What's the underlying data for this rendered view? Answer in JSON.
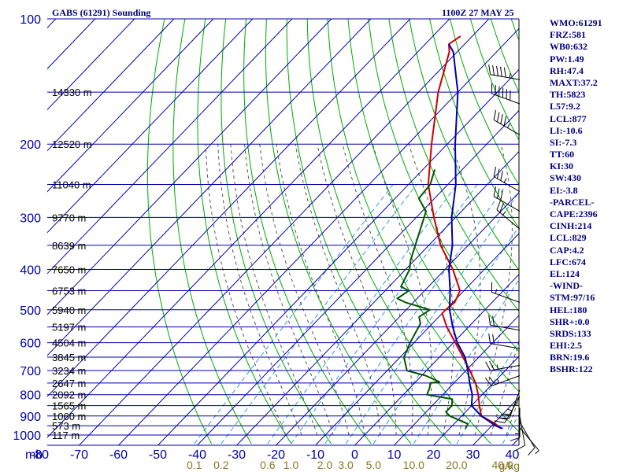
{
  "header": {
    "title": "GABS (61291) Sounding",
    "time": "1100Z 27 MAY 25"
  },
  "indices": [
    "WMO:61291",
    "FRZ:581",
    "WB0:632",
    "PW:1.49",
    "RH:47.4",
    "MAXT:37.2",
    "TH:5823",
    "L57:9.2",
    "LCL:877",
    "LI:-10.6",
    "SI:-7.3",
    "TT:60",
    "KI:30",
    "SW:430",
    "EI:-3.8",
    "-PARCEL-",
    "CAPE:2396",
    "CINH:214",
    "LCL:829",
    "CAP:4.2",
    "LFC:674",
    "EL:124",
    "-WIND-",
    "STM:97/16",
    "HEL:180",
    "SHR+:0.0",
    "SRDS:133",
    "EHI:2.5",
    "BRN:19.6",
    "BSHR:122"
  ],
  "colors": {
    "isobar": "#0000aa",
    "isotherm": "#0000aa",
    "dry_adiabat": "#00aa00",
    "moist_adiabat": "#555555",
    "mixing_ratio": "#3399dd",
    "temperature": "#cc0000",
    "dewpoint": "#005500",
    "parcel": "#0000aa",
    "text": "#00007f",
    "mixing_label": "#887722"
  },
  "chart_data": {
    "type": "line",
    "title": "GABS (61291) Sounding",
    "pressure_unit": "mb",
    "pressure_ticks": [
      "100",
      "200",
      "300",
      "400",
      "500",
      "600",
      "700",
      "800",
      "900",
      "1000"
    ],
    "temperature_ticks": [
      "-80",
      "-70",
      "-60",
      "-50",
      "-40",
      "-30",
      "-20",
      "-10",
      "0",
      "10",
      "20",
      "30",
      "40"
    ],
    "mixing_ratio_labels": [
      "0.1",
      "0.2",
      "0.6",
      "1.0",
      "2.0",
      "3.0",
      "5.0",
      "10.0",
      "20.0",
      "40.0"
    ],
    "mixing_ratio_unit": "g/kg",
    "height_labels": [
      {
        "p": 150,
        "label": "14330 m"
      },
      {
        "p": 200,
        "label": "12520 m"
      },
      {
        "p": 250,
        "label": "11040 m"
      },
      {
        "p": 300,
        "label": "9770 m"
      },
      {
        "p": 350,
        "label": "8639 m"
      },
      {
        "p": 400,
        "label": "7650 m"
      },
      {
        "p": 450,
        "label": "6753 m"
      },
      {
        "p": 500,
        "label": "5940 m"
      },
      {
        "p": 550,
        "label": "5197 m"
      },
      {
        "p": 600,
        "label": "4504 m"
      },
      {
        "p": 650,
        "label": "3845 m"
      },
      {
        "p": 700,
        "label": "3234 m"
      },
      {
        "p": 750,
        "label": "2647 m"
      },
      {
        "p": 800,
        "label": "2092 m"
      },
      {
        "p": 850,
        "label": "1565 m"
      },
      {
        "p": 900,
        "label": "1060 m"
      },
      {
        "p": 950,
        "label": "573 m"
      },
      {
        "p": 1000,
        "label": "117 m"
      }
    ],
    "series": [
      {
        "key": "temperature",
        "points": [
          [
            965,
            33
          ],
          [
            940,
            30.5
          ],
          [
            900,
            25
          ],
          [
            850,
            22
          ],
          [
            800,
            19
          ],
          [
            750,
            15.5
          ],
          [
            700,
            11
          ],
          [
            650,
            6
          ],
          [
            600,
            0.5
          ],
          [
            550,
            -5.5
          ],
          [
            510,
            -10
          ],
          [
            500,
            -10
          ],
          [
            480,
            -9.5
          ],
          [
            450,
            -11
          ],
          [
            400,
            -18
          ],
          [
            350,
            -27
          ],
          [
            300,
            -35.5
          ],
          [
            250,
            -45
          ],
          [
            200,
            -54
          ],
          [
            150,
            -65
          ],
          [
            120,
            -72
          ],
          [
            115,
            -74
          ],
          [
            110,
            -73
          ]
        ]
      },
      {
        "key": "dewpoint",
        "points": [
          [
            965,
            24
          ],
          [
            940,
            23.5
          ],
          [
            900,
            17
          ],
          [
            880,
            15
          ],
          [
            850,
            15
          ],
          [
            820,
            13.5
          ],
          [
            800,
            6
          ],
          [
            770,
            5
          ],
          [
            750,
            4
          ],
          [
            745,
            6
          ],
          [
            720,
            1
          ],
          [
            700,
            -5
          ],
          [
            650,
            -9
          ],
          [
            600,
            -11
          ],
          [
            540,
            -13
          ],
          [
            520,
            -15
          ],
          [
            500,
            -14
          ],
          [
            480,
            -22
          ],
          [
            470,
            -25
          ],
          [
            450,
            -24
          ],
          [
            440,
            -27
          ],
          [
            400,
            -29
          ],
          [
            380,
            -31
          ],
          [
            300,
            -38
          ],
          [
            290,
            -39
          ],
          [
            270,
            -44
          ],
          [
            250,
            -44.5
          ],
          [
            230,
            -47
          ]
        ]
      },
      {
        "key": "parcel",
        "points": [
          [
            965,
            33.5
          ],
          [
            950,
            31
          ],
          [
            900,
            25
          ],
          [
            850,
            20
          ],
          [
            800,
            17.5
          ],
          [
            750,
            14
          ],
          [
            700,
            10.5
          ],
          [
            650,
            6.5
          ],
          [
            600,
            1
          ],
          [
            550,
            -4
          ],
          [
            500,
            -9
          ],
          [
            450,
            -13.5
          ],
          [
            400,
            -19
          ],
          [
            350,
            -24
          ],
          [
            300,
            -31
          ],
          [
            250,
            -38
          ],
          [
            200,
            -48
          ],
          [
            150,
            -60
          ],
          [
            120,
            -71
          ],
          [
            115,
            -74
          ]
        ]
      }
    ],
    "wind_barbs": [
      {
        "p": 140,
        "dir": 280,
        "spd": 55
      },
      {
        "p": 160,
        "dir": 290,
        "spd": 60
      },
      {
        "p": 190,
        "dir": 300,
        "spd": 45
      },
      {
        "p": 260,
        "dir": 300,
        "spd": 35
      },
      {
        "p": 290,
        "dir": 300,
        "spd": 30
      },
      {
        "p": 320,
        "dir": 310,
        "spd": 25
      },
      {
        "p": 480,
        "dir": 290,
        "spd": 15
      },
      {
        "p": 560,
        "dir": 280,
        "spd": 20
      },
      {
        "p": 620,
        "dir": 280,
        "spd": 20
      },
      {
        "p": 680,
        "dir": 260,
        "spd": 25
      },
      {
        "p": 720,
        "dir": 250,
        "spd": 25
      },
      {
        "p": 780,
        "dir": 200,
        "spd": 25
      },
      {
        "p": 810,
        "dir": 210,
        "spd": 25
      },
      {
        "p": 860,
        "dir": 180,
        "spd": 15
      },
      {
        "p": 900,
        "dir": 170,
        "spd": 10
      },
      {
        "p": 930,
        "dir": 150,
        "spd": 10
      },
      {
        "p": 960,
        "dir": 140,
        "spd": 5
      }
    ]
  }
}
